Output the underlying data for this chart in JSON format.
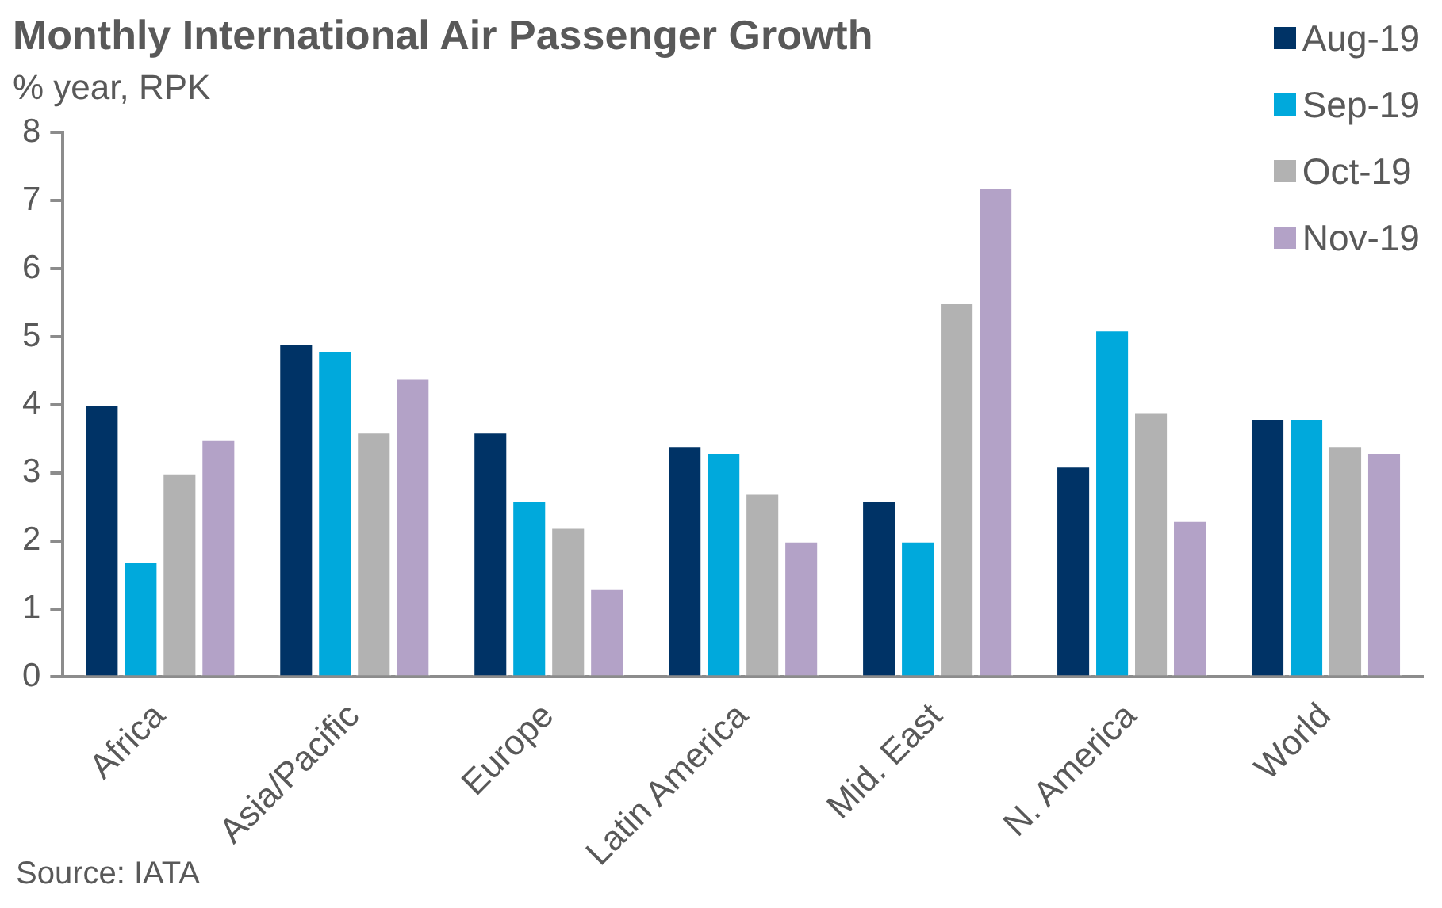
{
  "chart_data": {
    "type": "bar",
    "title": "Monthly International Air Passenger Growth",
    "subtitle": "% year, RPK",
    "categories": [
      "Africa",
      "Asia/Pacific",
      "Europe",
      "Latin America",
      "Mid. East",
      "N. America",
      "World"
    ],
    "series": [
      {
        "name": "Aug-19",
        "color": "#003366",
        "values": [
          4.0,
          4.9,
          3.6,
          3.4,
          2.6,
          3.1,
          3.8
        ]
      },
      {
        "name": "Sep-19",
        "color": "#00a9dc",
        "values": [
          1.7,
          4.8,
          2.6,
          3.3,
          2.0,
          5.1,
          3.8
        ]
      },
      {
        "name": "Oct-19",
        "color": "#b2b2b2",
        "values": [
          3.0,
          3.6,
          2.2,
          2.7,
          5.5,
          3.9,
          3.4
        ]
      },
      {
        "name": "Nov-19",
        "color": "#b3a2c7",
        "values": [
          3.5,
          4.4,
          1.3,
          2.0,
          7.2,
          2.3,
          3.3
        ]
      }
    ],
    "ylim": [
      0,
      8
    ],
    "yticks": [
      0,
      1,
      2,
      3,
      4,
      5,
      6,
      7,
      8
    ],
    "legend": "top right",
    "annotations": [
      "Source: IATA"
    ]
  }
}
